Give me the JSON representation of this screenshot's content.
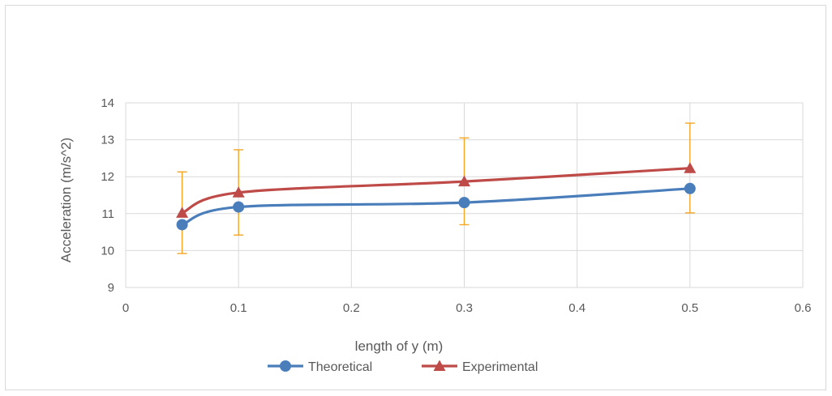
{
  "chart_data": {
    "type": "line",
    "title": "",
    "xlabel": "length of y (m)",
    "ylabel": "Acceleration (m/s^2)",
    "xlim": [
      0,
      0.6
    ],
    "ylim": [
      9,
      14
    ],
    "x_ticks": [
      0,
      0.1,
      0.2,
      0.3,
      0.4,
      0.5,
      0.6
    ],
    "x_tick_labels": [
      "0",
      "0.1",
      "0.2",
      "0.3",
      "0.4",
      "0.5",
      "0.6"
    ],
    "y_ticks": [
      9,
      10,
      11,
      12,
      13,
      14
    ],
    "y_tick_labels": [
      "9",
      "10",
      "11",
      "12",
      "13",
      "14"
    ],
    "grid": true,
    "legend": "bottom",
    "error_bar_color": "#f5a623",
    "series": [
      {
        "name": "Theoretical",
        "color": "#4a7ebb",
        "marker": "circle",
        "x": [
          0.05,
          0.1,
          0.3,
          0.5
        ],
        "y": [
          10.7,
          11.18,
          11.3,
          11.68
        ],
        "error_low": [
          9.92,
          10.42,
          10.7,
          11.02
        ],
        "error_high": [
          null,
          null,
          null,
          null
        ]
      },
      {
        "name": "Experimental",
        "color": "#be4b48",
        "marker": "triangle",
        "x": [
          0.05,
          0.1,
          0.3,
          0.5
        ],
        "y": [
          11.02,
          11.57,
          11.87,
          12.23
        ],
        "error_low": [
          null,
          null,
          null,
          null
        ],
        "error_high": [
          12.13,
          12.73,
          13.05,
          13.45
        ]
      }
    ]
  }
}
